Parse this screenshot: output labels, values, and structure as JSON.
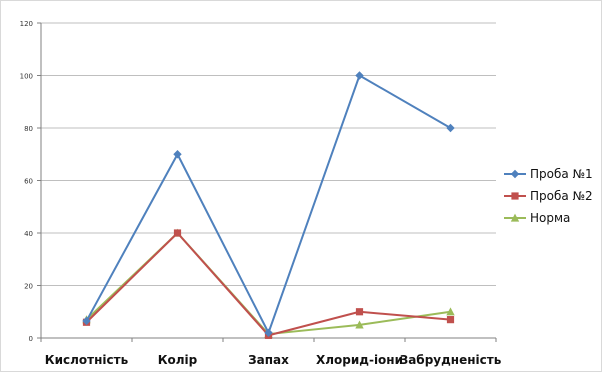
{
  "chart_data": {
    "type": "line",
    "title": "",
    "xlabel": "",
    "ylabel": "",
    "categories": [
      "Кислотність",
      "Колір",
      "Запах",
      "Хлорид-іони",
      "Забрудненість"
    ],
    "ylim": [
      0,
      120
    ],
    "yticks": [
      0,
      20,
      40,
      60,
      80,
      100,
      120
    ],
    "grid": true,
    "legend_position": "right",
    "series": [
      {
        "name": "Проба №1",
        "color": "#4f81bd",
        "marker": "diamond",
        "values": [
          6.5,
          70,
          2,
          100,
          80
        ]
      },
      {
        "name": "Проба №2",
        "color": "#c0504d",
        "marker": "square",
        "values": [
          6,
          40,
          1,
          10,
          7
        ]
      },
      {
        "name": "Норма",
        "color": "#9bbb59",
        "marker": "triangle",
        "values": [
          7,
          40,
          1.5,
          5,
          10
        ]
      }
    ]
  }
}
